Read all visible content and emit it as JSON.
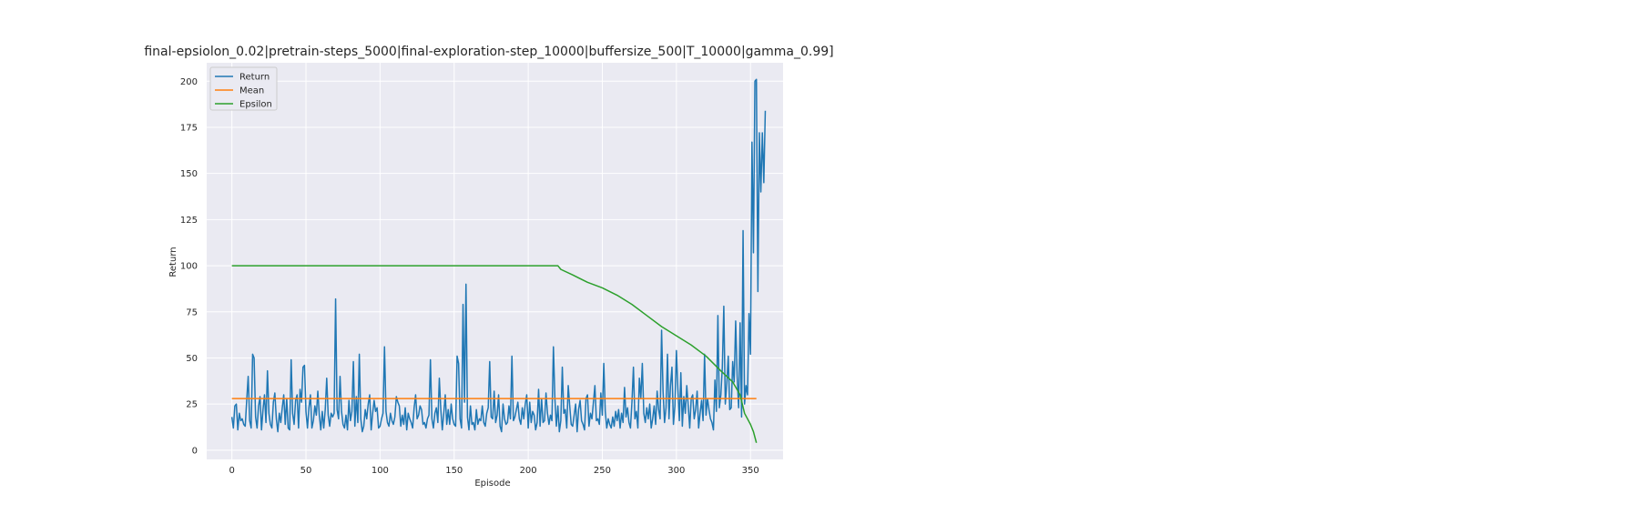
{
  "chart_data": {
    "type": "line",
    "title": "final-epsiolon_0.02|pretrain-steps_5000|final-exploration-step_10000|buffersize_500|T_10000|gamma_0.99]",
    "xlabel": "Episode",
    "ylabel": "Return",
    "xlim": [
      -17,
      372
    ],
    "ylim": [
      -5,
      210
    ],
    "xticks": [
      0,
      50,
      100,
      150,
      200,
      250,
      300,
      350
    ],
    "yticks": [
      0,
      25,
      50,
      75,
      100,
      125,
      150,
      175,
      200
    ],
    "grid": true,
    "legend_position": "top-left",
    "background": "#eaeaf2",
    "series": [
      {
        "name": "Return",
        "color": "#1f77b4",
        "values": [
          18,
          12,
          24,
          25,
          11,
          20,
          16,
          17,
          14,
          13,
          27,
          40,
          16,
          12,
          52,
          50,
          18,
          12,
          24,
          29,
          11,
          22,
          30,
          15,
          43,
          20,
          14,
          12,
          26,
          31,
          17,
          10,
          20,
          15,
          23,
          30,
          14,
          28,
          12,
          11,
          49,
          20,
          14,
          27,
          30,
          12,
          33,
          26,
          45,
          46,
          21,
          12,
          23,
          30,
          12,
          16,
          24,
          19,
          32,
          19,
          11,
          21,
          12,
          22,
          39,
          19,
          13,
          20,
          18,
          20,
          82,
          22,
          17,
          40,
          21,
          14,
          12,
          19,
          11,
          27,
          16,
          21,
          48,
          13,
          29,
          15,
          52,
          17,
          10,
          13,
          22,
          17,
          25,
          30,
          11,
          20,
          27,
          21,
          23,
          12,
          13,
          17,
          20,
          56,
          21,
          15,
          13,
          20,
          16,
          14,
          18,
          29,
          26,
          24,
          13,
          19,
          14,
          23,
          11,
          20,
          17,
          15,
          12,
          23,
          30,
          17,
          19,
          24,
          22,
          14,
          15,
          12,
          17,
          19,
          49,
          17,
          12,
          20,
          23,
          15,
          39,
          22,
          11,
          20,
          30,
          14,
          22,
          14,
          25,
          17,
          14,
          13,
          51,
          47,
          17,
          12,
          79,
          26,
          90,
          18,
          11,
          24,
          14,
          15,
          11,
          22,
          14,
          17,
          16,
          24,
          15,
          13,
          20,
          23,
          48,
          18,
          17,
          32,
          15,
          19,
          30,
          13,
          10,
          25,
          17,
          14,
          15,
          24,
          17,
          51,
          16,
          18,
          22,
          26,
          17,
          14,
          23,
          17,
          25,
          30,
          12,
          26,
          15,
          21,
          19,
          11,
          15,
          33,
          13,
          28,
          15,
          16,
          31,
          20,
          14,
          19,
          16,
          56,
          28,
          13,
          24,
          10,
          16,
          45,
          20,
          22,
          12,
          35,
          24,
          14,
          13,
          19,
          25,
          10,
          22,
          27,
          16,
          14,
          11,
          28,
          30,
          13,
          20,
          17,
          26,
          35,
          16,
          17,
          14,
          31,
          19,
          47,
          21,
          12,
          17,
          14,
          12,
          18,
          13,
          21,
          16,
          22,
          12,
          20,
          15,
          34,
          18,
          23,
          15,
          12,
          26,
          45,
          17,
          21,
          12,
          39,
          28,
          47,
          20,
          15,
          23,
          17,
          25,
          12,
          17,
          24,
          14,
          32,
          22,
          17,
          65,
          32,
          15,
          23,
          52,
          17,
          35,
          45,
          14,
          24,
          54,
          33,
          16,
          42,
          13,
          29,
          20,
          35,
          24,
          12,
          28,
          30,
          17,
          22,
          32,
          12,
          20,
          27,
          16,
          52,
          19,
          28,
          22,
          17,
          15,
          11,
          38,
          21,
          73,
          23,
          30,
          45,
          78,
          25,
          36,
          51,
          22,
          23,
          48,
          37,
          70,
          40,
          23,
          69,
          18,
          119,
          25,
          35,
          30,
          74,
          52,
          167,
          107,
          200,
          201,
          86,
          172,
          140,
          172,
          145,
          184
        ]
      },
      {
        "name": "Mean",
        "color": "#ff7f0e",
        "values": [
          28,
          28
        ],
        "x": [
          0,
          354
        ]
      },
      {
        "name": "Epsilon",
        "color": "#2ca02c",
        "x": [
          0,
          220,
          222,
          230,
          240,
          250,
          260,
          270,
          280,
          290,
          300,
          310,
          320,
          330,
          338,
          343,
          346,
          350,
          352,
          354
        ],
        "values": [
          100,
          100,
          98,
          95,
          91,
          88,
          84,
          79,
          73,
          67,
          62,
          57,
          51,
          43,
          37,
          30,
          20,
          14,
          10,
          4
        ]
      }
    ]
  }
}
